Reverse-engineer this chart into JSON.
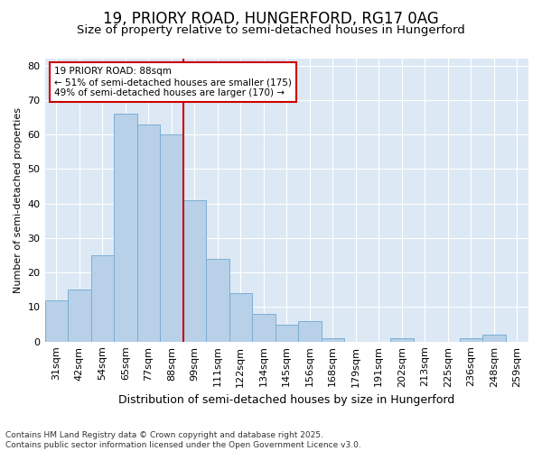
{
  "title1": "19, PRIORY ROAD, HUNGERFORD, RG17 0AG",
  "title2": "Size of property relative to semi-detached houses in Hungerford",
  "xlabel": "Distribution of semi-detached houses by size in Hungerford",
  "ylabel": "Number of semi-detached properties",
  "categories": [
    "31sqm",
    "42sqm",
    "54sqm",
    "65sqm",
    "77sqm",
    "88sqm",
    "99sqm",
    "111sqm",
    "122sqm",
    "134sqm",
    "145sqm",
    "156sqm",
    "168sqm",
    "179sqm",
    "191sqm",
    "202sqm",
    "213sqm",
    "225sqm",
    "236sqm",
    "248sqm",
    "259sqm"
  ],
  "values": [
    12,
    15,
    25,
    66,
    63,
    60,
    41,
    24,
    14,
    8,
    5,
    6,
    1,
    0,
    0,
    1,
    0,
    0,
    1,
    2,
    0
  ],
  "bar_color": "#b8d0e8",
  "bar_edge_color": "#7aafd4",
  "vline_x": 5.5,
  "vline_color": "#cc0000",
  "annotation_text": "19 PRIORY ROAD: 88sqm\n← 51% of semi-detached houses are smaller (175)\n49% of semi-detached houses are larger (170) →",
  "annotation_box_color": "#cc0000",
  "ylim": [
    0,
    82
  ],
  "yticks": [
    0,
    10,
    20,
    30,
    40,
    50,
    60,
    70,
    80
  ],
  "footer": "Contains HM Land Registry data © Crown copyright and database right 2025.\nContains public sector information licensed under the Open Government Licence v3.0.",
  "bg_color": "#ffffff",
  "plot_bg_color": "#dde8f5",
  "title1_fontsize": 12,
  "title2_fontsize": 9.5,
  "xlabel_fontsize": 9,
  "ylabel_fontsize": 8,
  "footer_fontsize": 6.5,
  "tick_fontsize": 8,
  "annot_fontsize": 7.5
}
